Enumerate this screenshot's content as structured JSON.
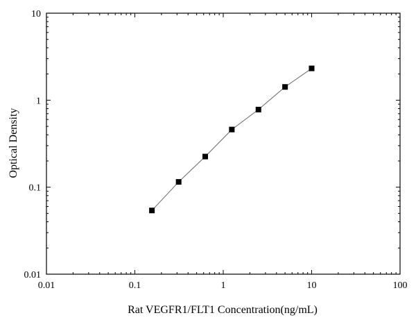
{
  "chart_data": {
    "type": "scatter",
    "title": "",
    "xlabel": "Rat VEGFR1/FLT1 Concentration(ng/mL)",
    "ylabel": "Optical Density",
    "x_scale": "log",
    "y_scale": "log",
    "xlim": [
      0.01,
      100
    ],
    "ylim": [
      0.01,
      10
    ],
    "x_ticks": [
      0.01,
      0.1,
      1,
      10,
      100
    ],
    "x_tick_labels": [
      "0.01",
      "0.1",
      "1",
      "10",
      "100"
    ],
    "y_ticks": [
      0.01,
      0.1,
      1,
      10
    ],
    "y_tick_labels": [
      "0.01",
      "0.1",
      "1",
      "10"
    ],
    "grid": false,
    "series": [
      {
        "x": [
          0.156,
          0.313,
          0.625,
          1.25,
          2.5,
          5,
          10
        ],
        "y": [
          0.054,
          0.115,
          0.225,
          0.46,
          0.78,
          1.42,
          2.32
        ],
        "marker": "square",
        "line": true,
        "color": "#000000",
        "line_color": "#666666"
      }
    ]
  }
}
